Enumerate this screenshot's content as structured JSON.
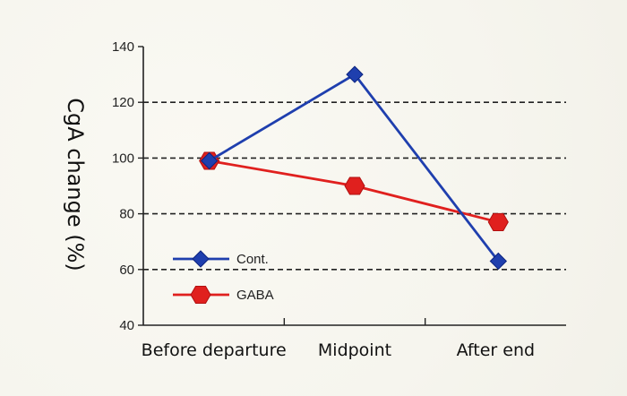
{
  "chart_data": {
    "type": "line",
    "title": "",
    "xlabel": "",
    "ylabel": "CgA change (%)",
    "categories": [
      "Before departure",
      "Midpoint",
      "After end"
    ],
    "ylim": [
      40,
      140
    ],
    "yticks": [
      40,
      60,
      80,
      100,
      120,
      140
    ],
    "gridlines": [
      60,
      80,
      100,
      120
    ],
    "legend_position": "bottom-left",
    "series": [
      {
        "name": "Cont.",
        "values": [
          99,
          130,
          63
        ],
        "color": "#1f3fae",
        "marker": "diamond"
      },
      {
        "name": "GABA",
        "values": [
          99,
          90,
          77
        ],
        "color": "#e0201e",
        "marker": "hexagon"
      }
    ]
  }
}
